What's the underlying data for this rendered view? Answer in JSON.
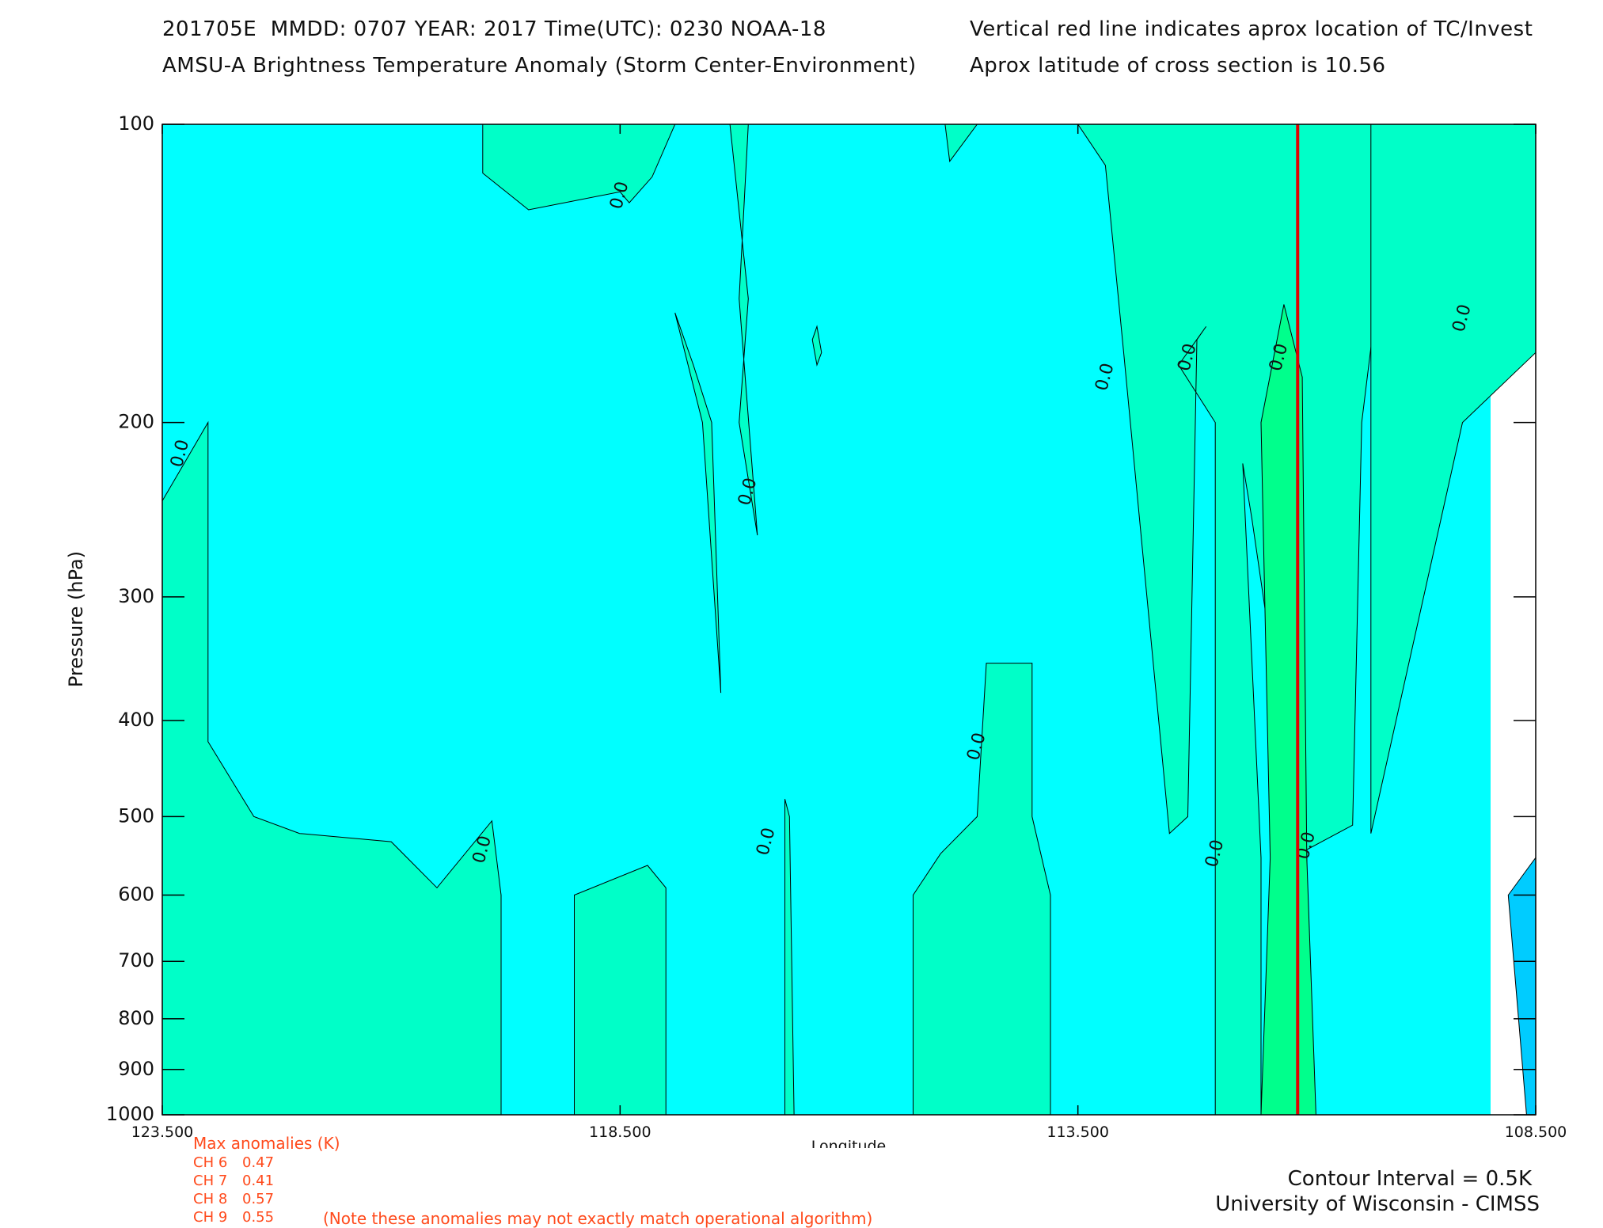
{
  "header": {
    "line1_left": "201705E  MMDD: 0707 YEAR: 2017 Time(UTC): 0230 NOAA-18",
    "line2_left": "AMSU-A Brightness Temperature Anomaly (Storm Center-Environment)",
    "line1_right": "Vertical red line indicates aprox location of TC/Invest",
    "line2_right": "Aprox latitude of cross section is 10.56"
  },
  "anomalies": {
    "title": "Max anomalies (K)",
    "channels": [
      {
        "label": "CH 6",
        "value": "0.47"
      },
      {
        "label": "CH 7",
        "value": "0.41"
      },
      {
        "label": "CH 8",
        "value": "0.57"
      },
      {
        "label": "CH 9",
        "value": "0.55"
      }
    ],
    "note": "(Note these anomalies may not exactly match operational algorithm)"
  },
  "footer": {
    "contour_interval": "Contour Interval = 0.5K",
    "credit": "University of Wisconsin - CIMSS"
  },
  "chart_data": {
    "type": "heatmap",
    "xlabel": "Longitude",
    "ylabel": "Pressure (hPa)",
    "xlim": [
      123.5,
      108.5
    ],
    "ylim": [
      1000,
      100
    ],
    "y_scale": "log",
    "x_ticks": [
      "123.500",
      "118.500",
      "113.500",
      "108.500"
    ],
    "x_tick_values": [
      123.5,
      118.5,
      113.5,
      108.5
    ],
    "y_ticks": [
      "100",
      "200",
      "300",
      "400",
      "500",
      "600",
      "700",
      "800",
      "900",
      "1000"
    ],
    "y_tick_values": [
      100,
      200,
      300,
      400,
      500,
      600,
      700,
      800,
      900,
      1000
    ],
    "contour_interval_K": 0.5,
    "storm_longitude": 111.1,
    "colors": {
      "background": "#00ffff",
      "zero_band": "#00ffc8",
      "high_band": "#00ff8c",
      "negative_band": "#00ccff",
      "storm_line": "#e00000"
    },
    "contour_labels": [
      {
        "text": "0.0",
        "lon": 123.3,
        "p": 215
      },
      {
        "text": "0.0",
        "lon": 118.5,
        "p": 118
      },
      {
        "text": "0.0",
        "lon": 117.1,
        "p": 235
      },
      {
        "text": "0.0",
        "lon": 116.9,
        "p": 530
      },
      {
        "text": "0.0",
        "lon": 120.0,
        "p": 540
      },
      {
        "text": "0.0",
        "lon": 114.6,
        "p": 425
      },
      {
        "text": "0.0",
        "lon": 113.2,
        "p": 180
      },
      {
        "text": "0.0",
        "lon": 112.3,
        "p": 172
      },
      {
        "text": "0.0",
        "lon": 112.0,
        "p": 545
      },
      {
        "text": "0.0",
        "lon": 111.3,
        "p": 172
      },
      {
        "text": "0.0",
        "lon": 111.0,
        "p": 535
      },
      {
        "text": "0.0",
        "lon": 109.3,
        "p": 157
      }
    ],
    "regions": [
      {
        "level": "zero_band",
        "points": [
          [
            123.5,
            240
          ],
          [
            123.5,
            1000
          ],
          [
            119.8,
            1000
          ],
          [
            119.8,
            600
          ],
          [
            119.9,
            505
          ],
          [
            120.5,
            590
          ],
          [
            121.0,
            530
          ],
          [
            122.0,
            520
          ],
          [
            122.5,
            500
          ],
          [
            123.0,
            420
          ],
          [
            123.0,
            200
          ]
        ]
      },
      {
        "level": "zero_band",
        "points": [
          [
            120.0,
            100
          ],
          [
            120.0,
            112
          ],
          [
            119.5,
            122
          ],
          [
            118.5,
            117
          ],
          [
            118.4,
            120
          ],
          [
            118.15,
            113
          ],
          [
            117.9,
            100
          ]
        ]
      },
      {
        "level": "zero_band",
        "points": [
          [
            118.0,
            700
          ],
          [
            118.0,
            1000
          ],
          [
            119.0,
            1000
          ],
          [
            119.0,
            600
          ],
          [
            118.2,
            560
          ],
          [
            118.0,
            590
          ]
        ]
      },
      {
        "level": "zero_band",
        "points": [
          [
            117.3,
            100
          ],
          [
            117.1,
            100
          ],
          [
            117.2,
            150
          ],
          [
            117.0,
            260
          ],
          [
            117.2,
            200
          ],
          [
            117.1,
            150
          ]
        ]
      },
      {
        "level": "zero_band",
        "points": [
          [
            117.9,
            155
          ],
          [
            117.6,
            200
          ],
          [
            117.4,
            375
          ],
          [
            117.5,
            200
          ],
          [
            117.7,
            175
          ]
        ]
      },
      {
        "level": "zero_band",
        "points": [
          [
            116.4,
            165
          ],
          [
            116.35,
            160
          ],
          [
            116.3,
            170
          ],
          [
            116.35,
            175
          ]
        ]
      },
      {
        "level": "zero_band",
        "points": [
          [
            116.7,
            480
          ],
          [
            116.65,
            500
          ],
          [
            116.6,
            1000
          ],
          [
            116.7,
            1000
          ]
        ]
      },
      {
        "level": "zero_band",
        "points": [
          [
            114.6,
            100
          ],
          [
            114.8,
            100
          ],
          [
            114.95,
            100
          ],
          [
            114.9,
            109
          ]
        ]
      },
      {
        "level": "zero_band",
        "points": [
          [
            115.3,
            1000
          ],
          [
            115.3,
            600
          ],
          [
            115.0,
            545
          ],
          [
            114.6,
            500
          ],
          [
            114.5,
            350
          ],
          [
            114.0,
            350
          ],
          [
            114.0,
            500
          ],
          [
            113.8,
            600
          ],
          [
            113.8,
            1000
          ]
        ]
      },
      {
        "level": "zero_band",
        "points": [
          [
            113.5,
            100
          ],
          [
            113.2,
            110
          ],
          [
            113.0,
            170
          ],
          [
            112.5,
            520
          ],
          [
            112.3,
            500
          ],
          [
            112.2,
            165
          ],
          [
            112.1,
            160
          ],
          [
            112.4,
            175
          ],
          [
            112.0,
            200
          ],
          [
            112.0,
            1000
          ],
          [
            111.5,
            1000
          ],
          [
            111.5,
            550
          ],
          [
            111.7,
            220
          ],
          [
            111.6,
            250
          ],
          [
            111.0,
            600
          ],
          [
            111.0,
            540
          ],
          [
            110.5,
            510
          ],
          [
            110.4,
            200
          ],
          [
            110.0,
            100
          ]
        ]
      },
      {
        "level": "high_band",
        "points": [
          [
            111.5,
            1000
          ],
          [
            111.4,
            550
          ],
          [
            111.5,
            200
          ],
          [
            111.25,
            152
          ],
          [
            111.05,
            180
          ],
          [
            111.0,
            550
          ],
          [
            110.9,
            1000
          ]
        ]
      },
      {
        "level": "zero_band",
        "points": [
          [
            108.5,
            100
          ],
          [
            108.5,
            170
          ],
          [
            109.3,
            200
          ],
          [
            110.3,
            520
          ],
          [
            110.3,
            100
          ]
        ]
      },
      {
        "level": "negative_band",
        "points": [
          [
            108.5,
            550
          ],
          [
            108.8,
            600
          ],
          [
            108.6,
            1000
          ],
          [
            108.5,
            1000
          ]
        ]
      }
    ]
  }
}
